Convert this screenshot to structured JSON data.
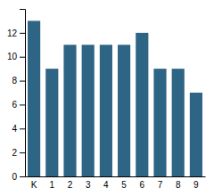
{
  "chart_data": {
    "type": "bar",
    "categories": [
      "K",
      "1",
      "2",
      "3",
      "4",
      "5",
      "6",
      "7",
      "8",
      "9"
    ],
    "values": [
      13,
      9,
      11,
      11,
      11,
      11,
      12,
      9,
      9,
      7
    ],
    "color": "#2e6484",
    "ylim": [
      0,
      14
    ],
    "yticks": [
      0,
      2,
      4,
      6,
      8,
      10,
      12
    ],
    "grid": false
  }
}
